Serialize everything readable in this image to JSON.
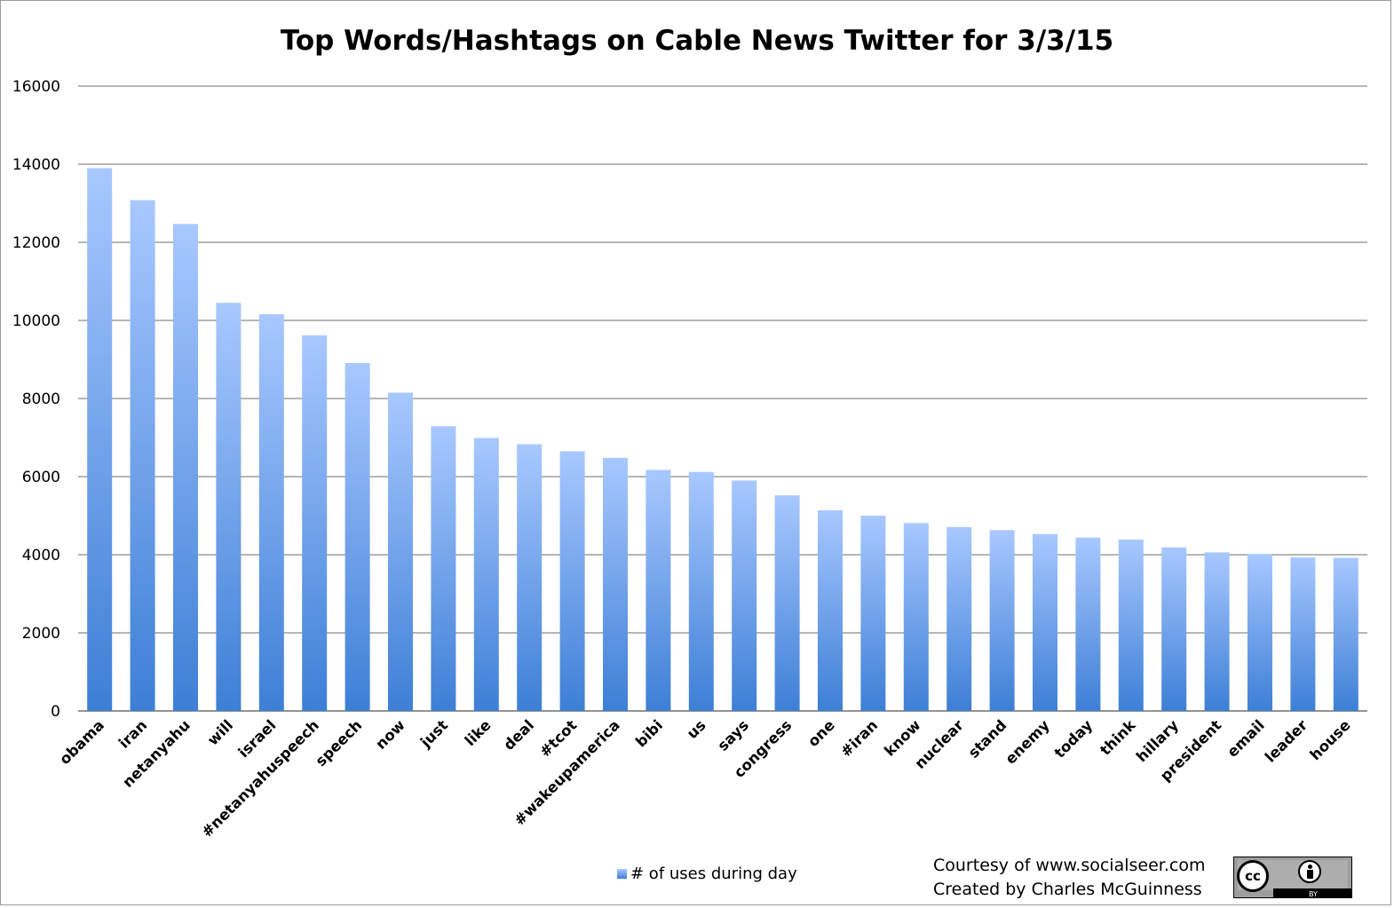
{
  "chart_data": {
    "type": "bar",
    "title": "Top Words/Hashtags on Cable News Twitter for 3/3/15",
    "xlabel": "",
    "ylabel": "",
    "ylim": [
      0,
      16000
    ],
    "yticks": [
      0,
      2000,
      4000,
      6000,
      8000,
      10000,
      12000,
      14000,
      16000
    ],
    "grid": true,
    "legend_position": "bottom",
    "categories": [
      "obama",
      "iran",
      "netanyahu",
      "will",
      "israel",
      "#netanyahuspeech",
      "speech",
      "now",
      "just",
      "like",
      "deal",
      "#tcot",
      "#wakeupamerica",
      "bibi",
      "us",
      "says",
      "congress",
      "one",
      "#iran",
      "know",
      "nuclear",
      "stand",
      "enemy",
      "today",
      "think",
      "hillary",
      "president",
      "email",
      "leader",
      "house"
    ],
    "series": [
      {
        "name": "# of uses during day",
        "color_top": "#a8c8ff",
        "color_bottom": "#3d7fd6",
        "values": [
          13900,
          13080,
          12470,
          10450,
          10160,
          9620,
          8910,
          8150,
          7290,
          6990,
          6830,
          6650,
          6480,
          6170,
          6120,
          5900,
          5520,
          5140,
          5000,
          4810,
          4710,
          4630,
          4530,
          4440,
          4390,
          4190,
          4060,
          4020,
          3930,
          3920
        ]
      }
    ]
  },
  "credit": {
    "line1": "Courtesy of www.socialseer.com",
    "line2": "Created by Charles McGuinness"
  },
  "license_badge": {
    "icon": "creative-commons-by-icon",
    "cc_label": "cc",
    "by_label": "BY"
  }
}
